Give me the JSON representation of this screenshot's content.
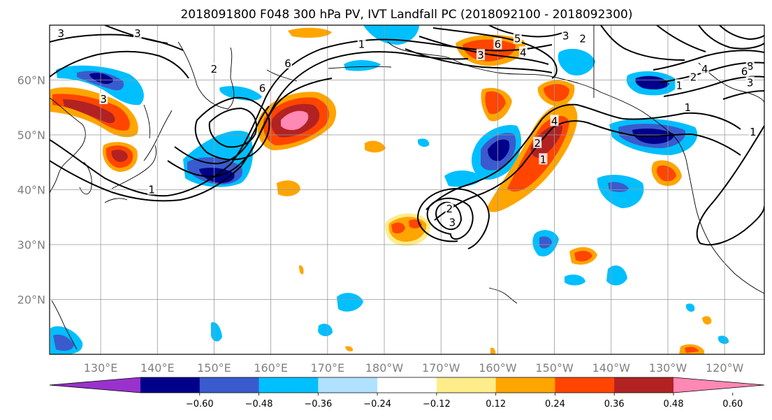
{
  "title": "2018091800 F048 300 hPa PV, IVT Landfall PC (2018092100 - 2018092300)",
  "map": {
    "lon_min": 121,
    "lon_max": 247,
    "lat_min": 10,
    "lat_max": 70,
    "grid": true,
    "lon_ticks": [
      {
        "lon": 130,
        "label": "130°E"
      },
      {
        "lon": 140,
        "label": "140°E"
      },
      {
        "lon": 150,
        "label": "150°E"
      },
      {
        "lon": 160,
        "label": "160°E"
      },
      {
        "lon": 170,
        "label": "170°E"
      },
      {
        "lon": 180,
        "label": "180°W"
      },
      {
        "lon": 190,
        "label": "170°W"
      },
      {
        "lon": 200,
        "label": "160°W"
      },
      {
        "lon": 210,
        "label": "150°W"
      },
      {
        "lon": 220,
        "label": "140°W"
      },
      {
        "lon": 230,
        "label": "130°W"
      },
      {
        "lon": 240,
        "label": "120°W"
      }
    ],
    "lat_ticks": [
      {
        "lat": 20,
        "label": "20°N"
      },
      {
        "lat": 30,
        "label": "30°N"
      },
      {
        "lat": 40,
        "label": "40°N"
      },
      {
        "lat": 50,
        "label": "50°N"
      },
      {
        "lat": 60,
        "label": "60°N"
      }
    ]
  },
  "colorbar": {
    "extend": "both",
    "colors": [
      "#9932cc",
      "#00008b",
      "#3a5bcd",
      "#00bfff",
      "#b0e2ff",
      "#ffffff",
      "#ffec8b",
      "#ffa500",
      "#ff4500",
      "#b22222",
      "#ff88b4"
    ],
    "tick_labels": [
      "−0.60",
      "−0.48",
      "−0.36",
      "−0.24",
      "−0.12",
      "0.12",
      "0.24",
      "0.36",
      "0.48",
      "0.60"
    ]
  },
  "pv_contour_labels": [
    {
      "text": "3",
      "lon": 123,
      "lat": 68.5
    },
    {
      "text": "3",
      "lon": 136.5,
      "lat": 68.5
    },
    {
      "text": "1",
      "lon": 176,
      "lat": 66.5
    },
    {
      "text": "2",
      "lon": 150,
      "lat": 62
    },
    {
      "text": "6",
      "lon": 163,
      "lat": 63
    },
    {
      "text": "6",
      "lon": 158.5,
      "lat": 58.5
    },
    {
      "text": "3",
      "lon": 130.5,
      "lat": 56.5
    },
    {
      "text": "1",
      "lon": 139,
      "lat": 40
    },
    {
      "text": "6",
      "lon": 200,
      "lat": 66.5
    },
    {
      "text": "5",
      "lon": 203.5,
      "lat": 67.5
    },
    {
      "text": "3",
      "lon": 212,
      "lat": 68
    },
    {
      "text": "2",
      "lon": 215,
      "lat": 67.5
    },
    {
      "text": "4",
      "lon": 204.5,
      "lat": 65
    },
    {
      "text": "3",
      "lon": 197,
      "lat": 64.5
    },
    {
      "text": "4",
      "lon": 210,
      "lat": 52.5
    },
    {
      "text": "2",
      "lon": 207,
      "lat": 48.5
    },
    {
      "text": "1",
      "lon": 208,
      "lat": 45.5
    },
    {
      "text": "2",
      "lon": 191.5,
      "lat": 36.5
    },
    {
      "text": "3",
      "lon": 192,
      "lat": 34
    },
    {
      "text": "1",
      "lon": 233.5,
      "lat": 55
    },
    {
      "text": "1",
      "lon": 232,
      "lat": 59
    },
    {
      "text": "2",
      "lon": 234.5,
      "lat": 60.5
    },
    {
      "text": "3",
      "lon": 244.5,
      "lat": 59.5
    },
    {
      "text": "1",
      "lon": 245,
      "lat": 50.5
    },
    {
      "text": "4",
      "lon": 236.5,
      "lat": 62
    },
    {
      "text": "8",
      "lon": 244.5,
      "lat": 62.5
    },
    {
      "text": "6",
      "lon": 243.5,
      "lat": 61.5
    }
  ]
}
